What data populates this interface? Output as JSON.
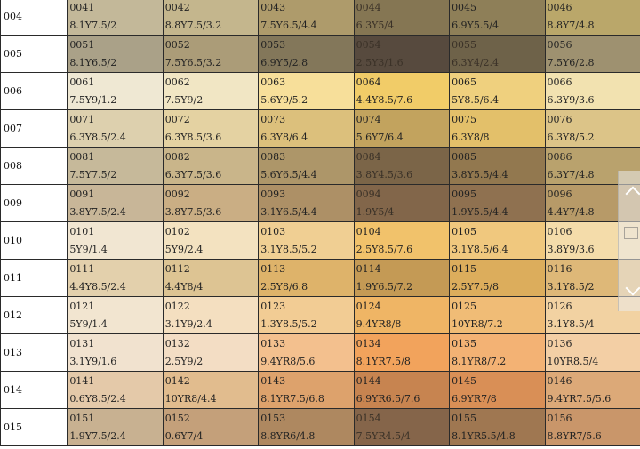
{
  "rows": [
    {
      "label": "004",
      "cells": [
        {
          "code": "0041",
          "notation": "8.1Y7.5/2",
          "color": "#c3b899"
        },
        {
          "code": "0042",
          "notation": "8.8Y7.5/3.2",
          "color": "#c4b68d"
        },
        {
          "code": "0043",
          "notation": "7.5Y6.5/4.4",
          "color": "#ae9b6b"
        },
        {
          "code": "0044",
          "notation": "6.3Y5/4",
          "color": "#857653"
        },
        {
          "code": "0045",
          "notation": "6.9Y5.5/4",
          "color": "#8e7f58"
        },
        {
          "code": "0046",
          "notation": "8.8Y7/4.8",
          "color": "#baa76a"
        }
      ]
    },
    {
      "label": "005",
      "cells": [
        {
          "code": "0051",
          "notation": "8.1Y6.5/2",
          "color": "#aaa188"
        },
        {
          "code": "0052",
          "notation": "7.5Y6.5/3.2",
          "color": "#ab9c78"
        },
        {
          "code": "0053",
          "notation": "6.9Y5/2.8",
          "color": "#83775a"
        },
        {
          "code": "0054",
          "notation": "2.5Y3/1.6",
          "color": "#574a3e"
        },
        {
          "code": "0055",
          "notation": "6.3Y4/2.4",
          "color": "#6e6249"
        },
        {
          "code": "0056",
          "notation": "7.5Y6/2.8",
          "color": "#9e9170"
        }
      ]
    },
    {
      "label": "006",
      "cells": [
        {
          "code": "0061",
          "notation": "7.5Y9/1.2",
          "color": "#efe8d3"
        },
        {
          "code": "0062",
          "notation": "7.5Y9/2",
          "color": "#f1e6c4"
        },
        {
          "code": "0063",
          "notation": "5.6Y9/5.2",
          "color": "#f7df9a"
        },
        {
          "code": "0064",
          "notation": "4.4Y8.5/7.6",
          "color": "#f1cc68"
        },
        {
          "code": "0065",
          "notation": "5Y8.5/6.4",
          "color": "#efd07e"
        },
        {
          "code": "0066",
          "notation": "6.3Y9/3.6",
          "color": "#f2e2b0"
        }
      ]
    },
    {
      "label": "007",
      "cells": [
        {
          "code": "0071",
          "notation": "6.3Y8.5/2.4",
          "color": "#ddd0ae"
        },
        {
          "code": "0072",
          "notation": "6.3Y8.5/3.6",
          "color": "#e4d2a2"
        },
        {
          "code": "0073",
          "notation": "6.3Y8/6.4",
          "color": "#dcc07c"
        },
        {
          "code": "0074",
          "notation": "5.6Y7/6.4",
          "color": "#c2a35e"
        },
        {
          "code": "0075",
          "notation": "6.3Y8/8",
          "color": "#e3c06a"
        },
        {
          "code": "0076",
          "notation": "6.3Y8/5.2",
          "color": "#dcc488"
        }
      ]
    },
    {
      "label": "008",
      "cells": [
        {
          "code": "0081",
          "notation": "7.5Y7.5/2",
          "color": "#c6b99a"
        },
        {
          "code": "0082",
          "notation": "6.3Y7.5/3.6",
          "color": "#c9b58a"
        },
        {
          "code": "0083",
          "notation": "5.6Y6.5/4.4",
          "color": "#ad9669"
        },
        {
          "code": "0084",
          "notation": "3.8Y4.5/3.6",
          "color": "#7b6548"
        },
        {
          "code": "0085",
          "notation": "3.8Y5.5/4.4",
          "color": "#92784f"
        },
        {
          "code": "0086",
          "notation": "6.3Y7/4.8",
          "color": "#b9a26d"
        }
      ]
    },
    {
      "label": "009",
      "cells": [
        {
          "code": "0091",
          "notation": "3.8Y7.5/2.4",
          "color": "#c8b698"
        },
        {
          "code": "0092",
          "notation": "3.8Y7.5/3.6",
          "color": "#caae84"
        },
        {
          "code": "0093",
          "notation": "3.1Y6.5/4.4",
          "color": "#ad9066"
        },
        {
          "code": "0094",
          "notation": "1.9Y5/4",
          "color": "#82664a"
        },
        {
          "code": "0095",
          "notation": "1.9Y5.5/4.4",
          "color": "#8f7150"
        },
        {
          "code": "0096",
          "notation": "4.4Y7/4.8",
          "color": "#b79a68"
        }
      ]
    },
    {
      "label": "010",
      "cells": [
        {
          "code": "0101",
          "notation": "5Y9/1.4",
          "color": "#f1e6d2"
        },
        {
          "code": "0102",
          "notation": "5Y9/2.4",
          "color": "#f3e2c0"
        },
        {
          "code": "0103",
          "notation": "3.1Y8.5/5.2",
          "color": "#f0cf93"
        },
        {
          "code": "0104",
          "notation": "2.5Y8.5/7.6",
          "color": "#f1c26b"
        },
        {
          "code": "0105",
          "notation": "3.1Y8.5/6.4",
          "color": "#f0c87e"
        },
        {
          "code": "0106",
          "notation": "3.8Y9/3.6",
          "color": "#f4dcaa"
        }
      ]
    },
    {
      "label": "011",
      "cells": [
        {
          "code": "0111",
          "notation": "4.4Y8.5/2.4",
          "color": "#e3d0ac"
        },
        {
          "code": "0112",
          "notation": "4.4Y8/4",
          "color": "#ddc493"
        },
        {
          "code": "0113",
          "notation": "2.5Y8/6.8",
          "color": "#deb36a"
        },
        {
          "code": "0114",
          "notation": "1.9Y6.5/7.2",
          "color": "#c49a55"
        },
        {
          "code": "0115",
          "notation": "2.5Y7.5/8",
          "color": "#dcad5c"
        },
        {
          "code": "0116",
          "notation": "3.1Y8.5/2",
          "color": "#deb878"
        }
      ]
    },
    {
      "label": "012",
      "cells": [
        {
          "code": "0121",
          "notation": "5Y9/1.4",
          "color": "#f2e5d0"
        },
        {
          "code": "0122",
          "notation": "3.1Y9/2.4",
          "color": "#f4dfc0"
        },
        {
          "code": "0123",
          "notation": "1.3Y8.5/5.2",
          "color": "#f2cc94"
        },
        {
          "code": "0124",
          "notation": "9.4YR8/8",
          "color": "#efb565"
        },
        {
          "code": "0125",
          "notation": "10YR8/7.2",
          "color": "#f0bc76"
        },
        {
          "code": "0126",
          "notation": "3.1Y8.5/4",
          "color": "#f2d2a2"
        }
      ]
    },
    {
      "label": "013",
      "cells": [
        {
          "code": "0131",
          "notation": "3.1Y9/1.6",
          "color": "#f1e2cf"
        },
        {
          "code": "0132",
          "notation": "2.5Y9/2",
          "color": "#f3ddc4"
        },
        {
          "code": "0133",
          "notation": "9.4YR8/5.6",
          "color": "#f3c08e"
        },
        {
          "code": "0134",
          "notation": "8.1YR7.5/8",
          "color": "#f2a35c"
        },
        {
          "code": "0135",
          "notation": "8.1YR8/7.2",
          "color": "#f3b274"
        },
        {
          "code": "0136",
          "notation": "10YR8.5/4",
          "color": "#f3cfa5"
        }
      ]
    },
    {
      "label": "014",
      "cells": [
        {
          "code": "0141",
          "notation": "0.6Y8.5/2.4",
          "color": "#e4c9a9"
        },
        {
          "code": "0142",
          "notation": "10YR8/4.4",
          "color": "#e1bc8e"
        },
        {
          "code": "0143",
          "notation": "8.1YR7.5/6.8",
          "color": "#dda26c"
        },
        {
          "code": "0144",
          "notation": "6.9YR6.5/7.6",
          "color": "#c78450"
        },
        {
          "code": "0145",
          "notation": "6.9YR7/8",
          "color": "#d98f56"
        },
        {
          "code": "0146",
          "notation": "9.4YR7.5/5.6",
          "color": "#dca978"
        }
      ]
    },
    {
      "label": "015",
      "cells": [
        {
          "code": "0151",
          "notation": "1.9Y7.5/2.4",
          "color": "#c8b191"
        },
        {
          "code": "0152",
          "notation": "0.6Y7/4",
          "color": "#c4a07a"
        },
        {
          "code": "0153",
          "notation": "8.8YR6/4.8",
          "color": "#ae8860"
        },
        {
          "code": "0154",
          "notation": "7.5YR4.5/4",
          "color": "#85654a"
        },
        {
          "code": "0155",
          "notation": "8.1YR5.5/4.8",
          "color": "#9f7751"
        },
        {
          "code": "0156",
          "notation": "8.8YR7/5.6",
          "color": "#c9966a"
        }
      ]
    }
  ]
}
